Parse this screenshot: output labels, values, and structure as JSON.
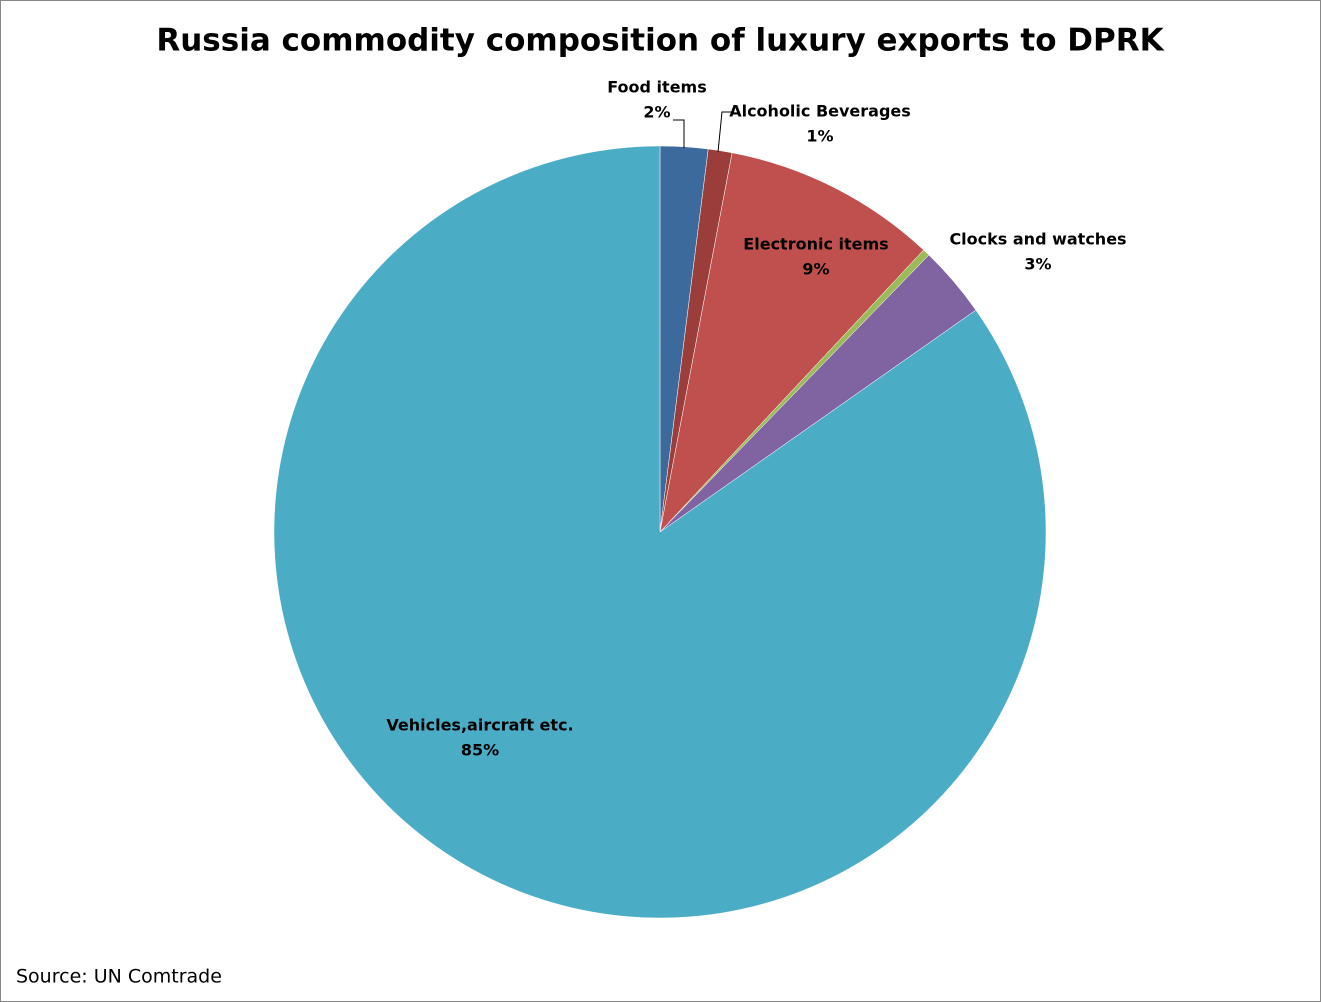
{
  "chart_data": {
    "type": "pie",
    "title": "Russia commodity composition of luxury exports to DPRK",
    "categories": [
      "Food items",
      "Alcoholic Beverages",
      "Electronic items",
      null,
      "Clocks and watches",
      "Vehicles,aircraft etc."
    ],
    "values": [
      2,
      1,
      9,
      0.3,
      3,
      85
    ],
    "value_labels": [
      "2%",
      "1%",
      "9%",
      null,
      "3%",
      "85%"
    ],
    "colors": [
      "#3d6a9c",
      "#9b3d3a",
      "#c0504d",
      "#9bbb59",
      "#8064a2",
      "#4bacc6"
    ],
    "source": "Source: UN Comtrade"
  }
}
